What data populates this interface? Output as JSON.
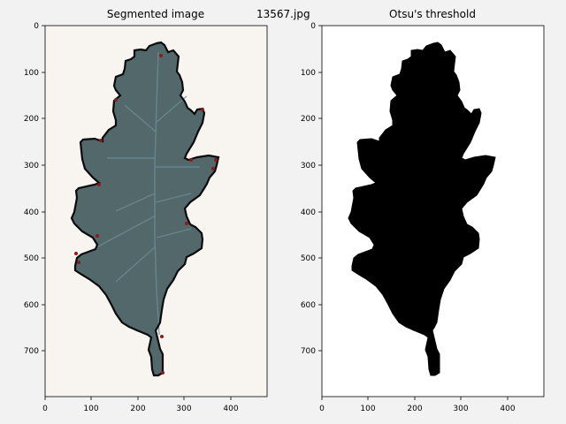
{
  "window": {
    "figure_title": "13567.jpg"
  },
  "panels": [
    {
      "title": "Segmented image",
      "xticks": [
        "0",
        "100",
        "200",
        "300",
        "400"
      ],
      "yticks": [
        "0",
        "100",
        "200",
        "300",
        "400",
        "500",
        "600",
        "700"
      ],
      "image_content": "segmented-leaf",
      "leaf_fill": "#52686a",
      "outline_color": "#0b0b0b",
      "background": "#f8f5f1"
    },
    {
      "title": "Otsu's threshold",
      "xticks": [
        "0",
        "100",
        "200",
        "300",
        "400"
      ],
      "yticks": [
        "0",
        "100",
        "200",
        "300",
        "400",
        "500",
        "600",
        "700"
      ],
      "image_content": "binary-mask",
      "leaf_fill": "#000000",
      "background": "#ffffff"
    }
  ],
  "colors": {
    "figure_background": "#f2f2f2",
    "edge_marks": "#8b1a1a"
  }
}
